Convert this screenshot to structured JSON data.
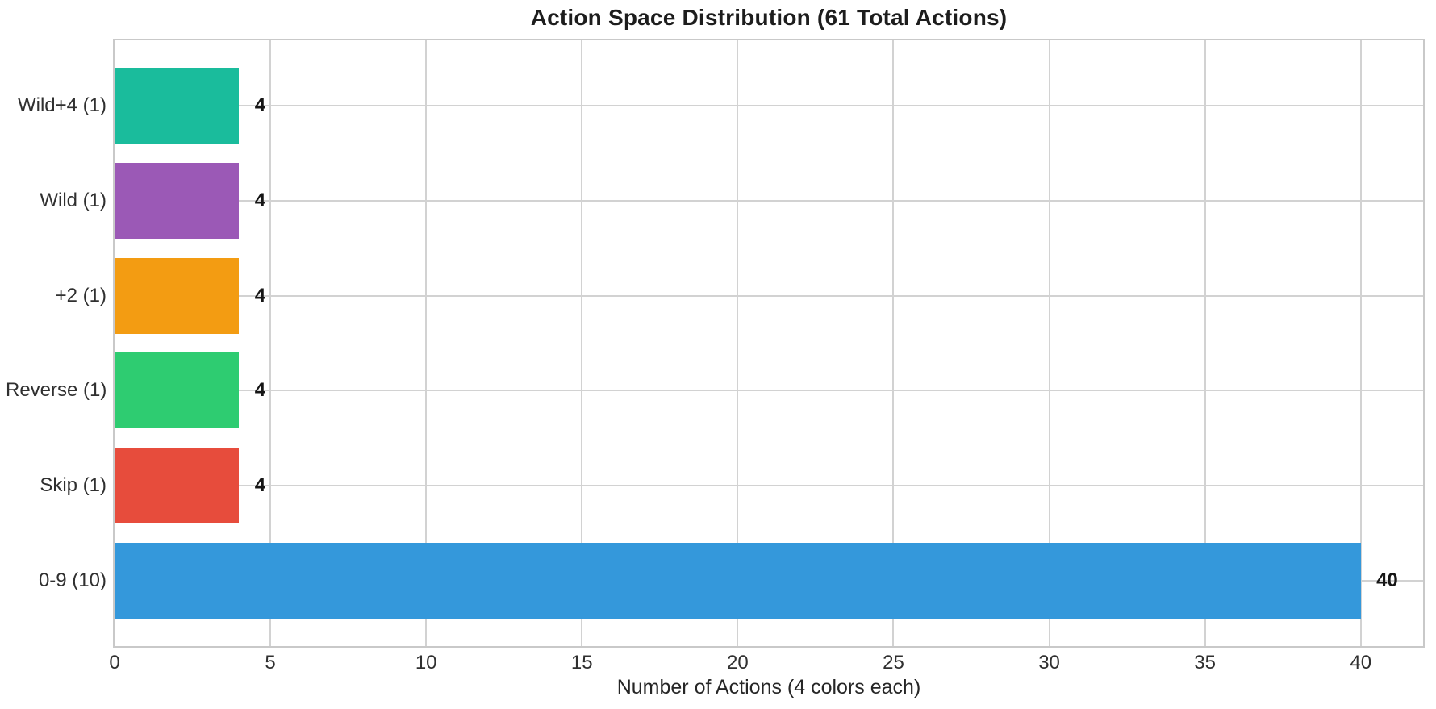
{
  "chart_data": {
    "type": "bar",
    "orientation": "horizontal",
    "title": "Action Space Distribution (61 Total Actions)",
    "xlabel": "Number of Actions (4 colors each)",
    "ylabel": "",
    "categories": [
      "Wild+4 (1)",
      "Wild (1)",
      "+2 (1)",
      "Reverse (1)",
      "Skip (1)",
      "0-9 (10)"
    ],
    "values": [
      4,
      4,
      4,
      4,
      4,
      40
    ],
    "value_labels": [
      "4",
      "4",
      "4",
      "4",
      "4",
      "40"
    ],
    "bar_colors": [
      "#1abc9c",
      "#9b59b6",
      "#f39c12",
      "#2ecc71",
      "#e74c3c",
      "#3498db"
    ],
    "x_ticks": [
      0,
      5,
      10,
      15,
      20,
      25,
      30,
      35,
      40
    ],
    "xlim": [
      0,
      42
    ],
    "ylim_units": [
      -0.69,
      5.69
    ],
    "bar_height_units": 0.8,
    "grid": true,
    "legend_position": "none",
    "grid_color": "#d2d2d2",
    "spine_color": "#c9c9c9",
    "text_color": "#303030",
    "value_label_color": "#161616",
    "title_color": "#1d1d1d",
    "background_color": "#ffffff"
  }
}
